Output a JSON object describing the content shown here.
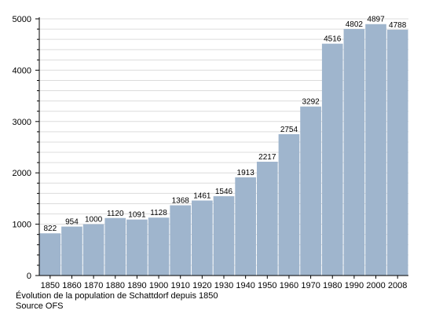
{
  "chart_data": {
    "type": "bar",
    "categories": [
      "1850",
      "1860",
      "1870",
      "1880",
      "1890",
      "1900",
      "1910",
      "1920",
      "1930",
      "1940",
      "1950",
      "1960",
      "1970",
      "1980",
      "1990",
      "2000",
      "2008"
    ],
    "values": [
      822,
      954,
      1000,
      1120,
      1091,
      1128,
      1368,
      1461,
      1546,
      1913,
      2217,
      2754,
      3292,
      4516,
      4802,
      4897,
      4788
    ],
    "data_labels": [
      "822",
      "954",
      "1000",
      "1120",
      "1091",
      "1128",
      "1368",
      "1461",
      "1546",
      "1913",
      "2217",
      "2754",
      "3292",
      "4516",
      "4802",
      "4897",
      "4788"
    ],
    "ylim": [
      0,
      5000
    ],
    "yticks": [
      0,
      1000,
      2000,
      3000,
      4000,
      5000
    ],
    "ytick_labels": [
      "0",
      "1000",
      "2000",
      "3000",
      "4000",
      "5000"
    ],
    "minor_step": 200,
    "grid": true,
    "xlabel": "",
    "ylabel": "",
    "colors": {
      "bar": "#9fb5cd",
      "grid": "#dcdcdc",
      "axis": "#000000"
    }
  },
  "caption": {
    "line1": "Évolution de la population de Schattdorf depuis 1850",
    "line2": "Source OFS"
  }
}
